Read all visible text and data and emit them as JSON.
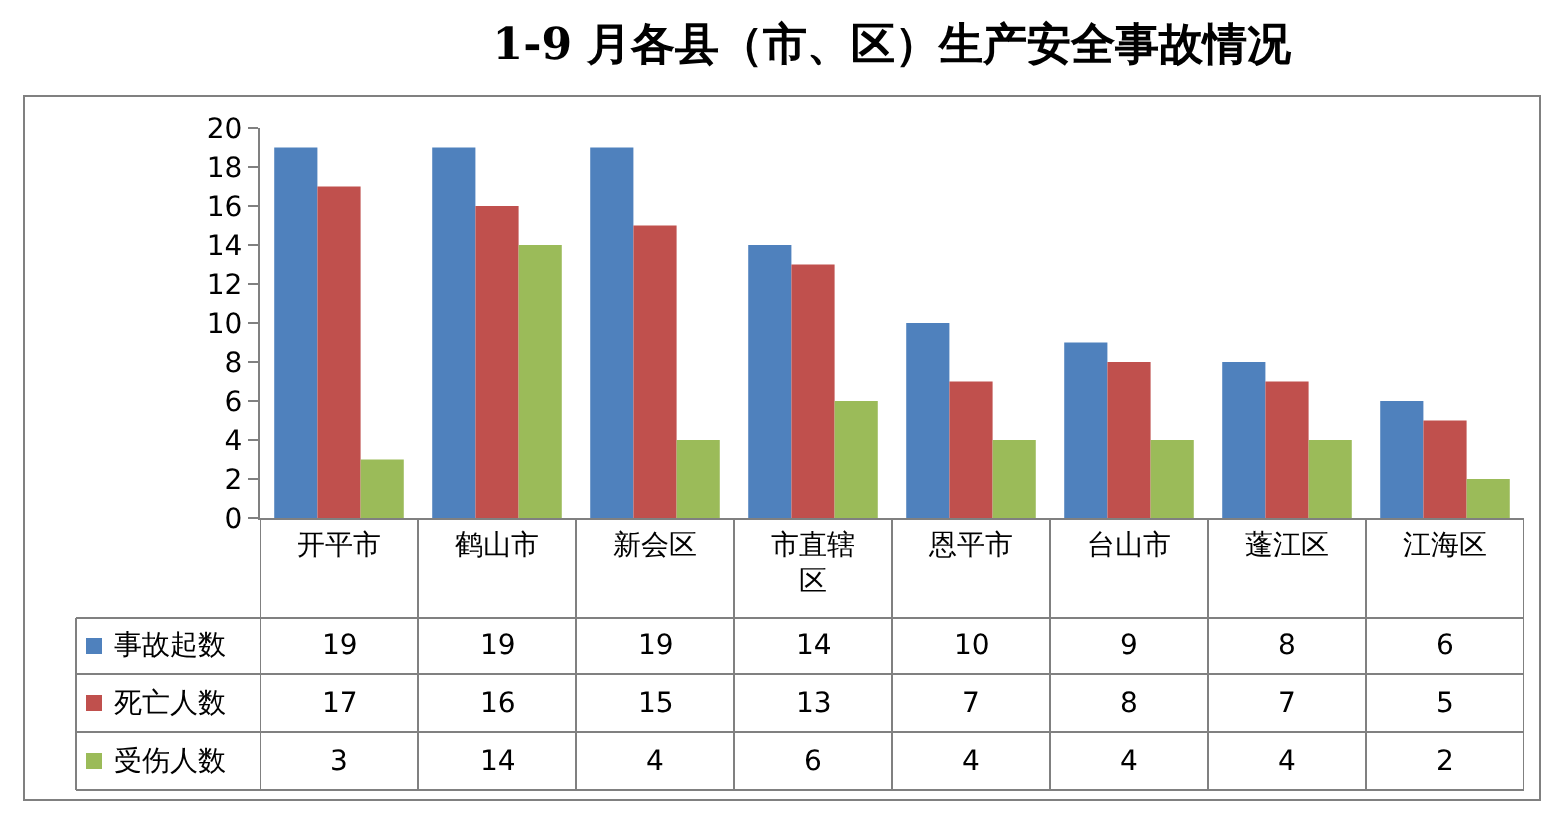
{
  "chart_data": {
    "type": "bar",
    "title": "1-9 月各县（市、区）生产安全事故情况",
    "categories": [
      "开平市",
      "鹤山市",
      "新会区",
      "市直辖区",
      "恩平市",
      "台山市",
      "蓬江区",
      "江海区"
    ],
    "series": [
      {
        "name": "事故起数",
        "color": "#4f81bd",
        "values": [
          19,
          19,
          19,
          14,
          10,
          9,
          8,
          6
        ]
      },
      {
        "name": "死亡人数",
        "color": "#c0504d",
        "values": [
          17,
          16,
          15,
          13,
          7,
          8,
          7,
          5
        ]
      },
      {
        "name": "受伤人数",
        "color": "#9bbb59",
        "values": [
          3,
          14,
          4,
          6,
          4,
          4,
          4,
          2
        ]
      }
    ],
    "ylim": [
      0,
      20
    ],
    "yticks": [
      0,
      2,
      4,
      6,
      8,
      10,
      12,
      14,
      16,
      18,
      20
    ],
    "data_labels": true,
    "legend": "bottom left"
  }
}
